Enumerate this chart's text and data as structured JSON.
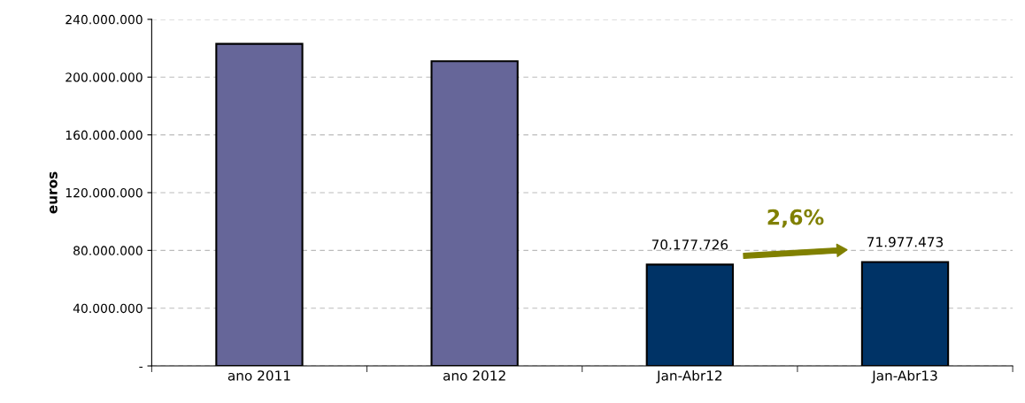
{
  "chart_data": {
    "type": "bar",
    "ylabel": "euros",
    "categories": [
      "ano 2011",
      "ano 2012",
      "Jan-Abr12",
      "Jan-Abr13"
    ],
    "values": [
      223000000,
      211000000,
      70177726,
      71977473
    ],
    "colors": [
      "#666699",
      "#666699",
      "#003366",
      "#003366"
    ],
    "value_labels": [
      null,
      null,
      "70.177.726",
      "71.977.473"
    ],
    "ylim": [
      0,
      240000000
    ],
    "yticks": [
      {
        "value": 0,
        "label": "-"
      },
      {
        "value": 40000000,
        "label": "40.000.000"
      },
      {
        "value": 80000000,
        "label": "80.000.000"
      },
      {
        "value": 120000000,
        "label": "120.000.000"
      },
      {
        "value": 160000000,
        "label": "160.000.000"
      },
      {
        "value": 200000000,
        "label": "200.000.000"
      },
      {
        "value": 240000000,
        "label": "240.000.000"
      }
    ],
    "grid": "y",
    "annotations": [
      "2,6%"
    ]
  }
}
